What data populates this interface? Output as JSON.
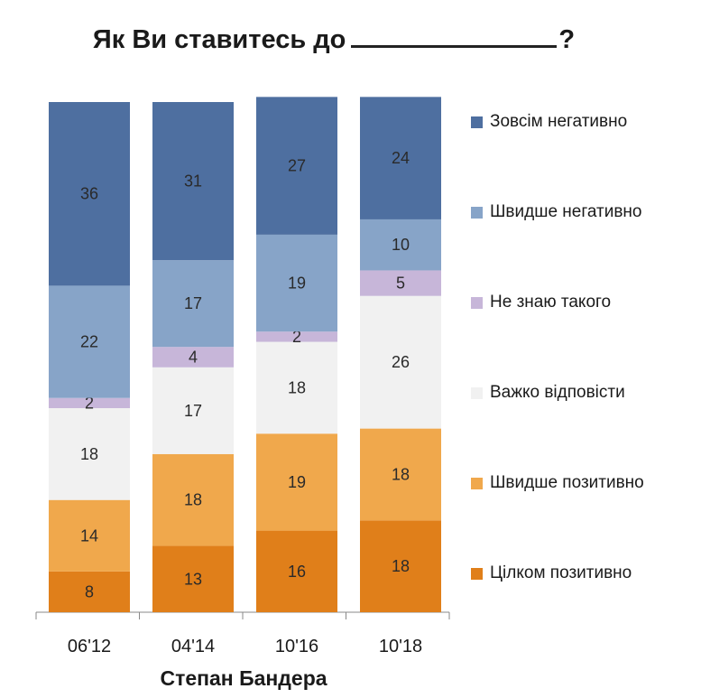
{
  "title_text": "Як Ви ставитесь до",
  "title_end": "?",
  "chart_data": {
    "type": "bar",
    "stacked": true,
    "categories": [
      "06'12",
      "04'14",
      "10'16",
      "10'18"
    ],
    "series": [
      {
        "name": "Цілком позитивно",
        "color": "#E07F1A",
        "values": [
          8,
          13,
          16,
          18
        ]
      },
      {
        "name": "Швидше позитивно",
        "color": "#F0A84C",
        "values": [
          14,
          18,
          19,
          18
        ]
      },
      {
        "name": "Важко відповісти",
        "color": "#F1F1F1",
        "values": [
          18,
          17,
          18,
          26
        ]
      },
      {
        "name": "Не знаю такого",
        "color": "#C7B6D9",
        "values": [
          2,
          4,
          2,
          5
        ]
      },
      {
        "name": "Швидше негативно",
        "color": "#87A4C8",
        "values": [
          22,
          17,
          19,
          10
        ]
      },
      {
        "name": "Зовсім негативно",
        "color": "#4E6FA0",
        "values": [
          36,
          31,
          27,
          24
        ]
      }
    ],
    "xlabel": "Степан Бандера",
    "ylabel": "",
    "legend_position": "right",
    "grid": false
  }
}
